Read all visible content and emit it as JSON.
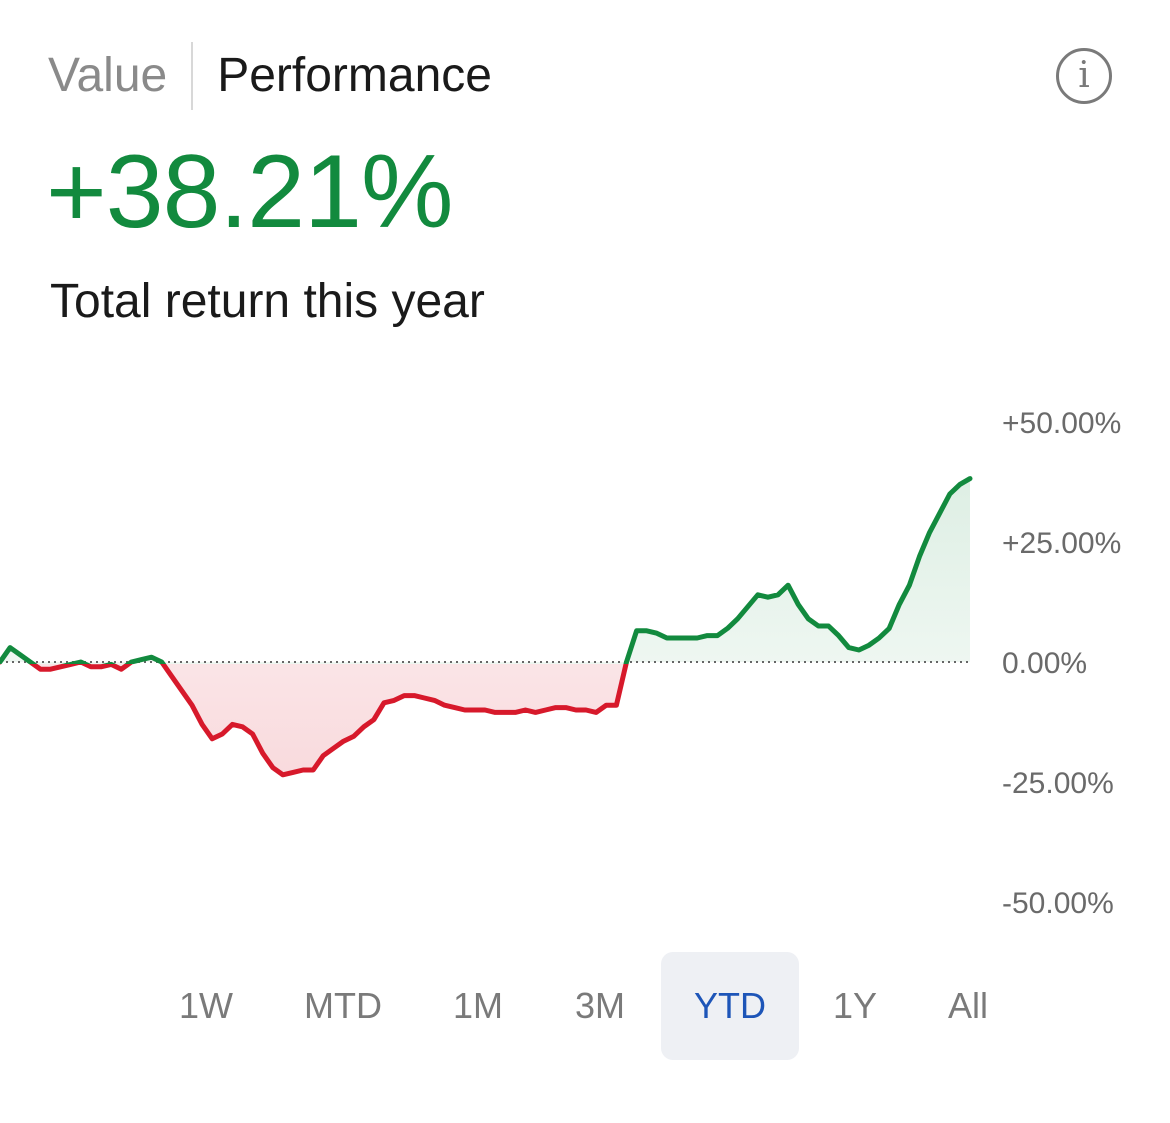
{
  "tabs": [
    {
      "label": "Value",
      "active": false
    },
    {
      "label": "Performance",
      "active": true
    }
  ],
  "info_icon": "info-icon",
  "headline": {
    "value": "+38.21%",
    "color": "#128a3e"
  },
  "subtitle": "Total return this year",
  "periods": [
    "1W",
    "MTD",
    "1M",
    "3M",
    "YTD",
    "1Y",
    "All"
  ],
  "selected_period": "YTD",
  "colors": {
    "positive": "#128a3e",
    "negative": "#d7192b",
    "selected_period_text": "#1d55b8",
    "selected_period_bg": "#eef0f4"
  },
  "chart_data": {
    "type": "area",
    "title": "",
    "xlabel": "",
    "ylabel": "",
    "y_ticks": [
      {
        "value": 50,
        "label": "+50.00%"
      },
      {
        "value": 25,
        "label": "+25.00%"
      },
      {
        "value": 0,
        "label": "0.00%"
      },
      {
        "value": -25,
        "label": "-25.00%"
      },
      {
        "value": -50,
        "label": "-50.00%"
      }
    ],
    "ylim": [
      -50,
      50
    ],
    "baseline": 0,
    "baseline_style": "dotted",
    "grid": false,
    "series": [
      {
        "values": [
          0,
          3,
          1.5,
          0,
          -1.5,
          -1.5,
          -1,
          -0.5,
          0,
          -1,
          -1,
          -0.5,
          -1.5,
          0,
          0.5,
          1,
          0,
          -3,
          -6,
          -9,
          -13,
          -16,
          -15,
          -13,
          -13.5,
          -15,
          -19,
          -22,
          -23.5,
          -23,
          -22.5,
          -22.5,
          -19.5,
          -18,
          -16.5,
          -15.5,
          -13.5,
          -12,
          -8.5,
          -8,
          -7,
          -7,
          -7.5,
          -8,
          -9,
          -9.5,
          -10,
          -10,
          -10,
          -10.5,
          -10.5,
          -10.5,
          -10,
          -10.5,
          -10,
          -9.5,
          -9.5,
          -10,
          -10,
          -10.5,
          -9,
          -9,
          0,
          6.5,
          6.5,
          6,
          5,
          5,
          5,
          5,
          5.5,
          5.5,
          7,
          9,
          11.5,
          14,
          13.5,
          14,
          16,
          12,
          9,
          7.5,
          7.5,
          5.5,
          3,
          2.5,
          3.5,
          5,
          7,
          12,
          16,
          22,
          27,
          31,
          35,
          37,
          38.21
        ]
      }
    ]
  }
}
